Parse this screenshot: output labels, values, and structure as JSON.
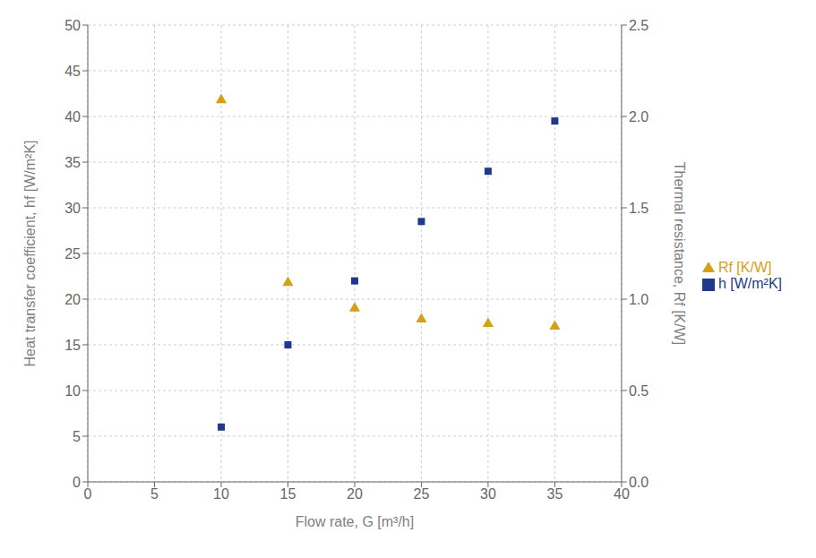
{
  "chart_data": {
    "type": "scatter",
    "x_label": "Flow rate, G [m³/h]",
    "y_label": "Heat transfer coefficient, hf [W/m²K]",
    "y2_label": "Thermal resistance, Rf [K/W]",
    "x": [
      10,
      15,
      20,
      25,
      30,
      35
    ],
    "series": [
      {
        "name": "h [W/m²K]",
        "color": "#1f3a8a",
        "marker": "square",
        "values": [
          6,
          15,
          22,
          28.5,
          34,
          39.5
        ]
      },
      {
        "name": "Rf [K/W]",
        "color": "#d4a017",
        "marker": "triangle",
        "axis": "y2",
        "values": [
          2.09,
          1.09,
          0.95,
          0.89,
          0.865,
          0.85
        ]
      }
    ],
    "xlim": [
      0,
      40
    ],
    "ylim": [
      0,
      50
    ],
    "y2lim": [
      0,
      2.5
    ],
    "xticks": [
      0,
      5,
      10,
      15,
      20,
      25,
      30,
      35,
      40
    ],
    "yticks": [
      0,
      5,
      10,
      15,
      20,
      25,
      30,
      35,
      40,
      45,
      50
    ],
    "y2ticks": [
      {
        "value": 0,
        "label": "0.0"
      },
      0.5,
      {
        "value": 1,
        "label": "1.0"
      },
      1.5,
      {
        "value": 2,
        "label": "2.0"
      },
      2.5
    ],
    "grid": true,
    "legend": "right"
  }
}
